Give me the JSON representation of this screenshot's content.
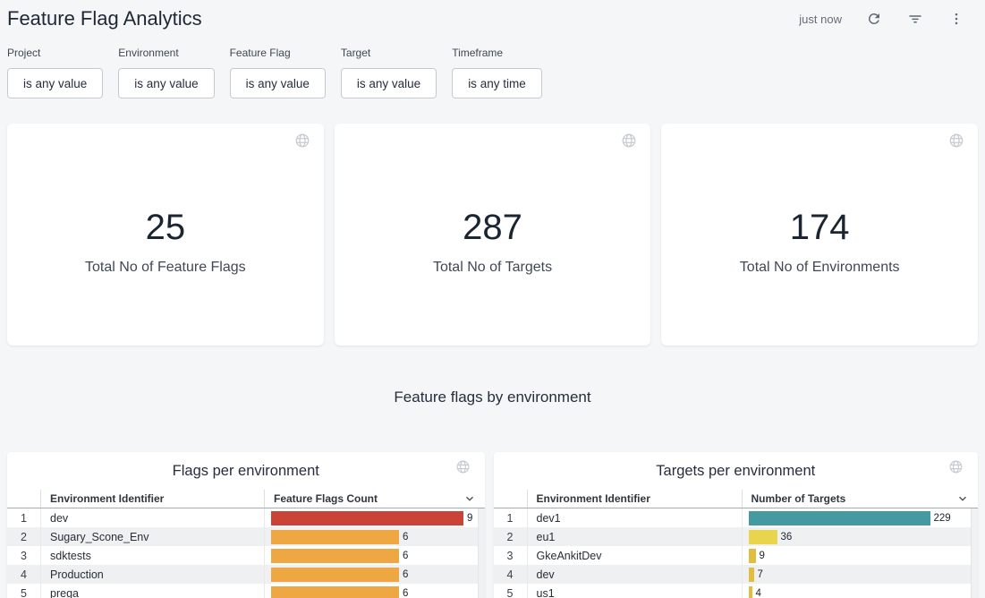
{
  "header": {
    "title": "Feature Flag Analytics",
    "last_updated": "just now"
  },
  "filters": [
    {
      "label": "Project",
      "value": "is any value"
    },
    {
      "label": "Environment",
      "value": "is any value"
    },
    {
      "label": "Feature Flag",
      "value": "is any value"
    },
    {
      "label": "Target",
      "value": "is any value"
    },
    {
      "label": "Timeframe",
      "value": "is any time"
    }
  ],
  "kpis": [
    {
      "value": "25",
      "label": "Total No of Feature Flags"
    },
    {
      "value": "287",
      "label": "Total No of Targets"
    },
    {
      "value": "174",
      "label": "Total No of Environments"
    }
  ],
  "section_title": "Feature flags by environment",
  "flags_table": {
    "title": "Flags per environment",
    "columns": [
      "Environment Identifier",
      "Feature Flags Count"
    ],
    "max_value": 9,
    "rows": [
      {
        "n": "1",
        "env": "dev",
        "value": 9,
        "color": "#cb4337"
      },
      {
        "n": "2",
        "env": "Sugary_Scone_Env",
        "value": 6,
        "color": "#efa743"
      },
      {
        "n": "3",
        "env": "sdktests",
        "value": 6,
        "color": "#efa743"
      },
      {
        "n": "4",
        "env": "Production",
        "value": 6,
        "color": "#efa743"
      },
      {
        "n": "5",
        "env": "prega",
        "value": 6,
        "color": "#efa743"
      }
    ]
  },
  "targets_table": {
    "title": "Targets per environment",
    "columns": [
      "Environment Identifier",
      "Number of Targets"
    ],
    "max_value": 229,
    "rows": [
      {
        "n": "1",
        "env": "dev1",
        "value": 229,
        "color": "#459aa1"
      },
      {
        "n": "2",
        "env": "eu1",
        "value": 36,
        "color": "#e8d44d"
      },
      {
        "n": "3",
        "env": "GkeAnkitDev",
        "value": 9,
        "color": "#e3bd3d"
      },
      {
        "n": "4",
        "env": "dev",
        "value": 7,
        "color": "#e3bd3d"
      },
      {
        "n": "5",
        "env": "us1",
        "value": 4,
        "color": "#e3bd3d"
      }
    ]
  },
  "chart_data": [
    {
      "type": "bar",
      "title": "Flags per environment",
      "categories": [
        "dev",
        "Sugary_Scone_Env",
        "sdktests",
        "Production",
        "prega"
      ],
      "values": [
        9,
        6,
        6,
        6,
        6
      ],
      "xlabel": "Feature Flags Count",
      "ylabel": "Environment Identifier",
      "xlim": [
        0,
        9
      ]
    },
    {
      "type": "bar",
      "title": "Targets per environment",
      "categories": [
        "dev1",
        "eu1",
        "GkeAnkitDev",
        "dev",
        "us1"
      ],
      "values": [
        229,
        36,
        9,
        7,
        4
      ],
      "xlabel": "Number of Targets",
      "ylabel": "Environment Identifier",
      "xlim": [
        0,
        229
      ]
    }
  ]
}
